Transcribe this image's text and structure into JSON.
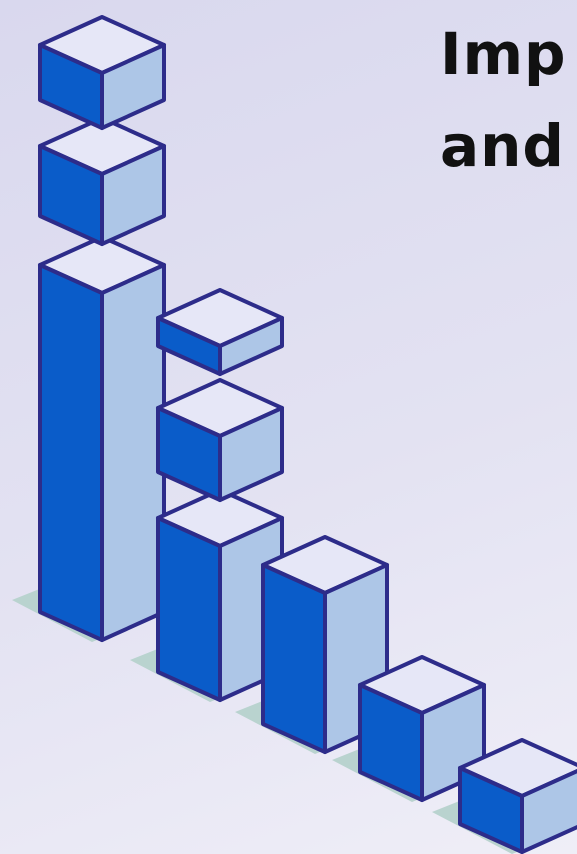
{
  "heading": {
    "lines": [
      "Imp",
      "and"
    ]
  }
}
